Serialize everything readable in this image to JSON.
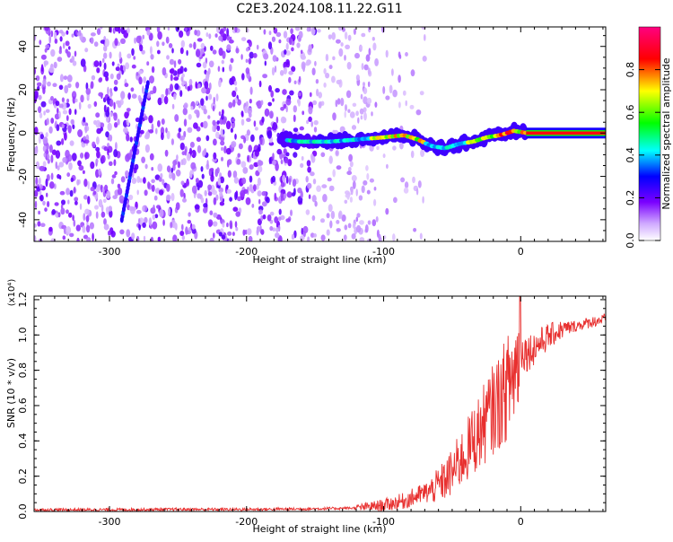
{
  "page": {
    "title": "C2E3.2024.108.11.22.G11"
  },
  "chart_data": [
    {
      "type": "heatmap",
      "title": "C2E3.2024.108.11.22.G11",
      "xlabel": "Height of straight line (km)",
      "ylabel": "Frequency (Hz)",
      "xlim": [
        -355,
        62
      ],
      "ylim": [
        -50,
        49
      ],
      "x_ticks": [
        -300,
        -200,
        -100,
        0
      ],
      "y_ticks": [
        -40,
        -20,
        0,
        20,
        40
      ],
      "x_tick_labels": [
        "-300",
        "-200",
        "-100",
        "0"
      ],
      "y_tick_labels": [
        "-40",
        "-20",
        "0",
        "20",
        "40"
      ],
      "colorbar": {
        "label": "Normalized spectral amplitude",
        "range": [
          0.0,
          1.0
        ],
        "ticks": [
          0.0,
          0.2,
          0.4,
          0.6,
          0.8
        ],
        "tick_labels": [
          "0.0",
          "0.2",
          "0.4",
          "0.6",
          "0.8"
        ],
        "colors": [
          "#ffffff",
          "#7a00ff",
          "#0000ff",
          "#00ffff",
          "#00ff00",
          "#ffff00",
          "#ff0000",
          "#ff0080"
        ]
      },
      "features": [
        {
          "kind": "slanted-line",
          "points": [
            [
              -291,
              -40
            ],
            [
              -282,
              -10
            ],
            [
              -276,
              10
            ],
            [
              -272,
              23
            ]
          ],
          "amplitude": 0.25
        },
        {
          "kind": "ridge",
          "points": [
            [
              -175,
              -3
            ],
            [
              -160,
              -4
            ],
            [
              -140,
              -4
            ],
            [
              -120,
              -3
            ],
            [
              -100,
              -2
            ],
            [
              -85,
              -1
            ],
            [
              -75,
              -3
            ],
            [
              -65,
              -6
            ],
            [
              -55,
              -7
            ],
            [
              -45,
              -5
            ],
            [
              -35,
              -4
            ],
            [
              -25,
              -2
            ],
            [
              -15,
              -1
            ],
            [
              -5,
              1
            ],
            [
              5,
              0
            ],
            [
              30,
              0
            ],
            [
              62,
              0
            ]
          ]
        }
      ],
      "grid": false
    },
    {
      "type": "line",
      "xlabel": "Height of straight line (km)",
      "ylabel": "SNR (10 * v/v)",
      "y_multiplier_label": "(x10⁴)",
      "xlim": [
        -355,
        62
      ],
      "ylim": [
        0.0,
        1.22
      ],
      "x_ticks": [
        -300,
        -200,
        -100,
        0
      ],
      "y_ticks": [
        0.0,
        0.2,
        0.4,
        0.6,
        0.8,
        1.0,
        1.2
      ],
      "x_tick_labels": [
        "-300",
        "-200",
        "-100",
        "0"
      ],
      "y_tick_labels": [
        "0.0",
        "0.2",
        "0.4",
        "0.6",
        "0.8",
        "1.0",
        "1.2"
      ],
      "color": "#e8302f",
      "series": [
        {
          "x": [
            -355,
            -300,
            -250,
            -200,
            -150,
            -120,
            -100,
            -85,
            -75,
            -65,
            -55,
            -50,
            -45,
            -40,
            -35,
            -30,
            -25,
            -20,
            -15,
            -10,
            -5,
            0,
            5,
            10,
            15,
            20,
            25,
            30,
            35,
            40,
            45,
            50,
            55,
            62
          ],
          "y": [
            0.01,
            0.01,
            0.012,
            0.012,
            0.015,
            0.02,
            0.035,
            0.06,
            0.09,
            0.12,
            0.18,
            0.22,
            0.28,
            0.33,
            0.4,
            0.45,
            0.52,
            0.58,
            0.63,
            0.7,
            0.78,
            0.92,
            0.9,
            0.93,
            0.96,
            0.99,
            1.01,
            1.03,
            1.04,
            1.05,
            1.06,
            1.07,
            1.08,
            1.09
          ]
        }
      ],
      "grid": false
    }
  ]
}
